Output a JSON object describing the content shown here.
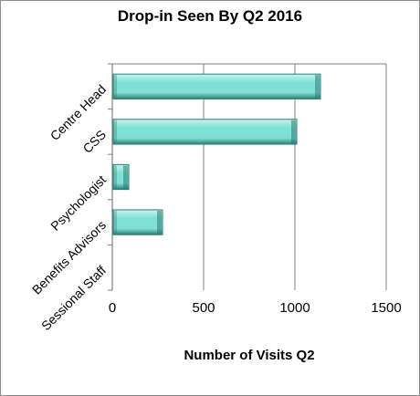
{
  "chart_data": {
    "type": "bar",
    "orientation": "horizontal",
    "title": "Drop-in Seen By Q2 2016",
    "xlabel": "Number of Visits Q2",
    "ylabel": "",
    "categories": [
      "Centre Head",
      "CSS",
      "Psychologist",
      "Benefits Advisors",
      "Sessional Staff"
    ],
    "values": [
      1135,
      1005,
      85,
      270,
      0
    ],
    "xlim": [
      0,
      1500
    ],
    "xticks": [
      0,
      500,
      1000,
      1500
    ],
    "grid": true,
    "legend": "none"
  },
  "colors": {
    "bar_fill": "#7fe0d4",
    "bar_highlight": "#c4f4ee",
    "bar_shadow": "#2d7d74",
    "gridline": "#7f7f7f",
    "axis": "#7f7f7f",
    "frame": "#8c8c8c"
  }
}
